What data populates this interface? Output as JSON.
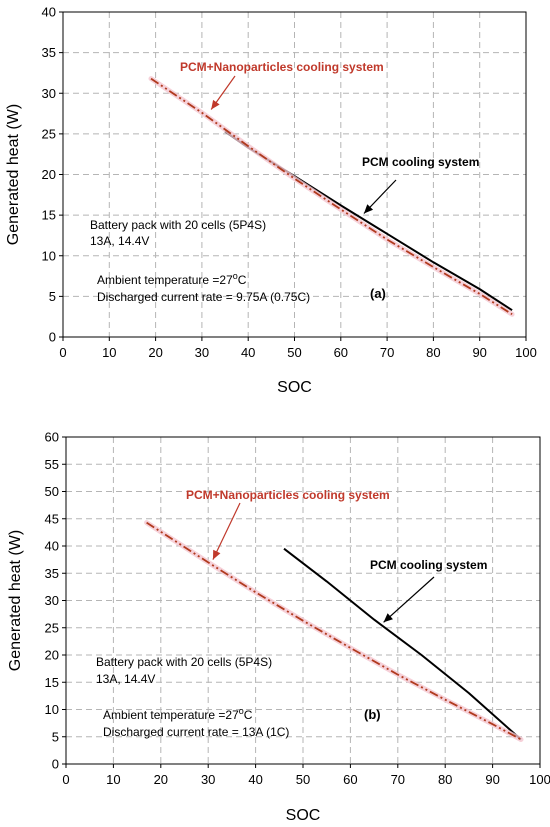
{
  "chart_data": [
    {
      "type": "line",
      "panel_label": "(a)",
      "xlabel": "SOC",
      "ylabel": "Generated heat (W)",
      "xlim": [
        0,
        100
      ],
      "ylim": [
        0,
        40
      ],
      "x_ticks": [
        "0",
        "10",
        "20",
        "30",
        "40",
        "50",
        "60",
        "70",
        "80",
        "90",
        "100"
      ],
      "y_ticks": [
        "0",
        "5",
        "10",
        "15",
        "20",
        "25",
        "30",
        "35",
        "40"
      ],
      "grid": true,
      "series": [
        {
          "name": "PCM cooling system",
          "color": "#000000",
          "style": "solid",
          "x": [
            35,
            40,
            50,
            60,
            70,
            80,
            90,
            97
          ],
          "y": [
            25.3,
            23.3,
            19.8,
            16.2,
            12.7,
            9.2,
            5.9,
            3.3
          ]
        },
        {
          "name": "PCM+Nanoparticles cooling system",
          "color": "#b03a1e",
          "style": "dash-dot",
          "x": [
            19,
            30,
            40,
            50,
            60,
            70,
            80,
            90,
            97
          ],
          "y": [
            31.8,
            27.6,
            23.5,
            19.5,
            15.7,
            12.0,
            8.6,
            5.3,
            2.8
          ]
        }
      ],
      "annotations": {
        "nano_label": "PCM+Nanoparticles cooling system",
        "pcm_label": "PCM cooling system",
        "pack_line1": "Battery pack with 20 cells (5P4S)",
        "pack_line2": "13A, 14.4V",
        "ambient_prefix": "Ambient temperature =27",
        "ambient_sup": "o",
        "ambient_suffix": "C",
        "current": "Discharged current rate = 9.75A (0.75C)"
      }
    },
    {
      "type": "line",
      "panel_label": "(b)",
      "xlabel": "SOC",
      "ylabel": "Generated heat (W)",
      "xlim": [
        0,
        100
      ],
      "ylim": [
        0,
        60
      ],
      "x_ticks": [
        "0",
        "10",
        "20",
        "30",
        "40",
        "50",
        "60",
        "70",
        "80",
        "90",
        "100"
      ],
      "y_ticks": [
        "0",
        "5",
        "10",
        "15",
        "20",
        "25",
        "30",
        "35",
        "40",
        "45",
        "50",
        "55",
        "60"
      ],
      "grid": true,
      "series": [
        {
          "name": "PCM cooling system",
          "color": "#000000",
          "style": "solid",
          "x": [
            46,
            55,
            65,
            75,
            85,
            96
          ],
          "y": [
            39.5,
            33.5,
            26.5,
            20.0,
            13.0,
            4.5
          ]
        },
        {
          "name": "PCM+Nanoparticles cooling system",
          "color": "#b03a1e",
          "style": "dash-dot",
          "x": [
            17,
            30,
            40,
            50,
            60,
            70,
            80,
            90,
            96
          ],
          "y": [
            44.3,
            37.0,
            31.5,
            26.3,
            21.3,
            16.4,
            11.8,
            7.3,
            4.5
          ]
        }
      ],
      "annotations": {
        "nano_label": "PCM+Nanoparticles cooling system",
        "pcm_label": "PCM cooling system",
        "pack_line1": "Battery pack with 20 cells (5P4S)",
        "pack_line2": "13A, 14.4V",
        "ambient_prefix": "Ambient temperature =27",
        "ambient_sup": "o",
        "ambient_suffix": "C",
        "current": "Discharged current rate = 13A (1C)"
      }
    }
  ]
}
